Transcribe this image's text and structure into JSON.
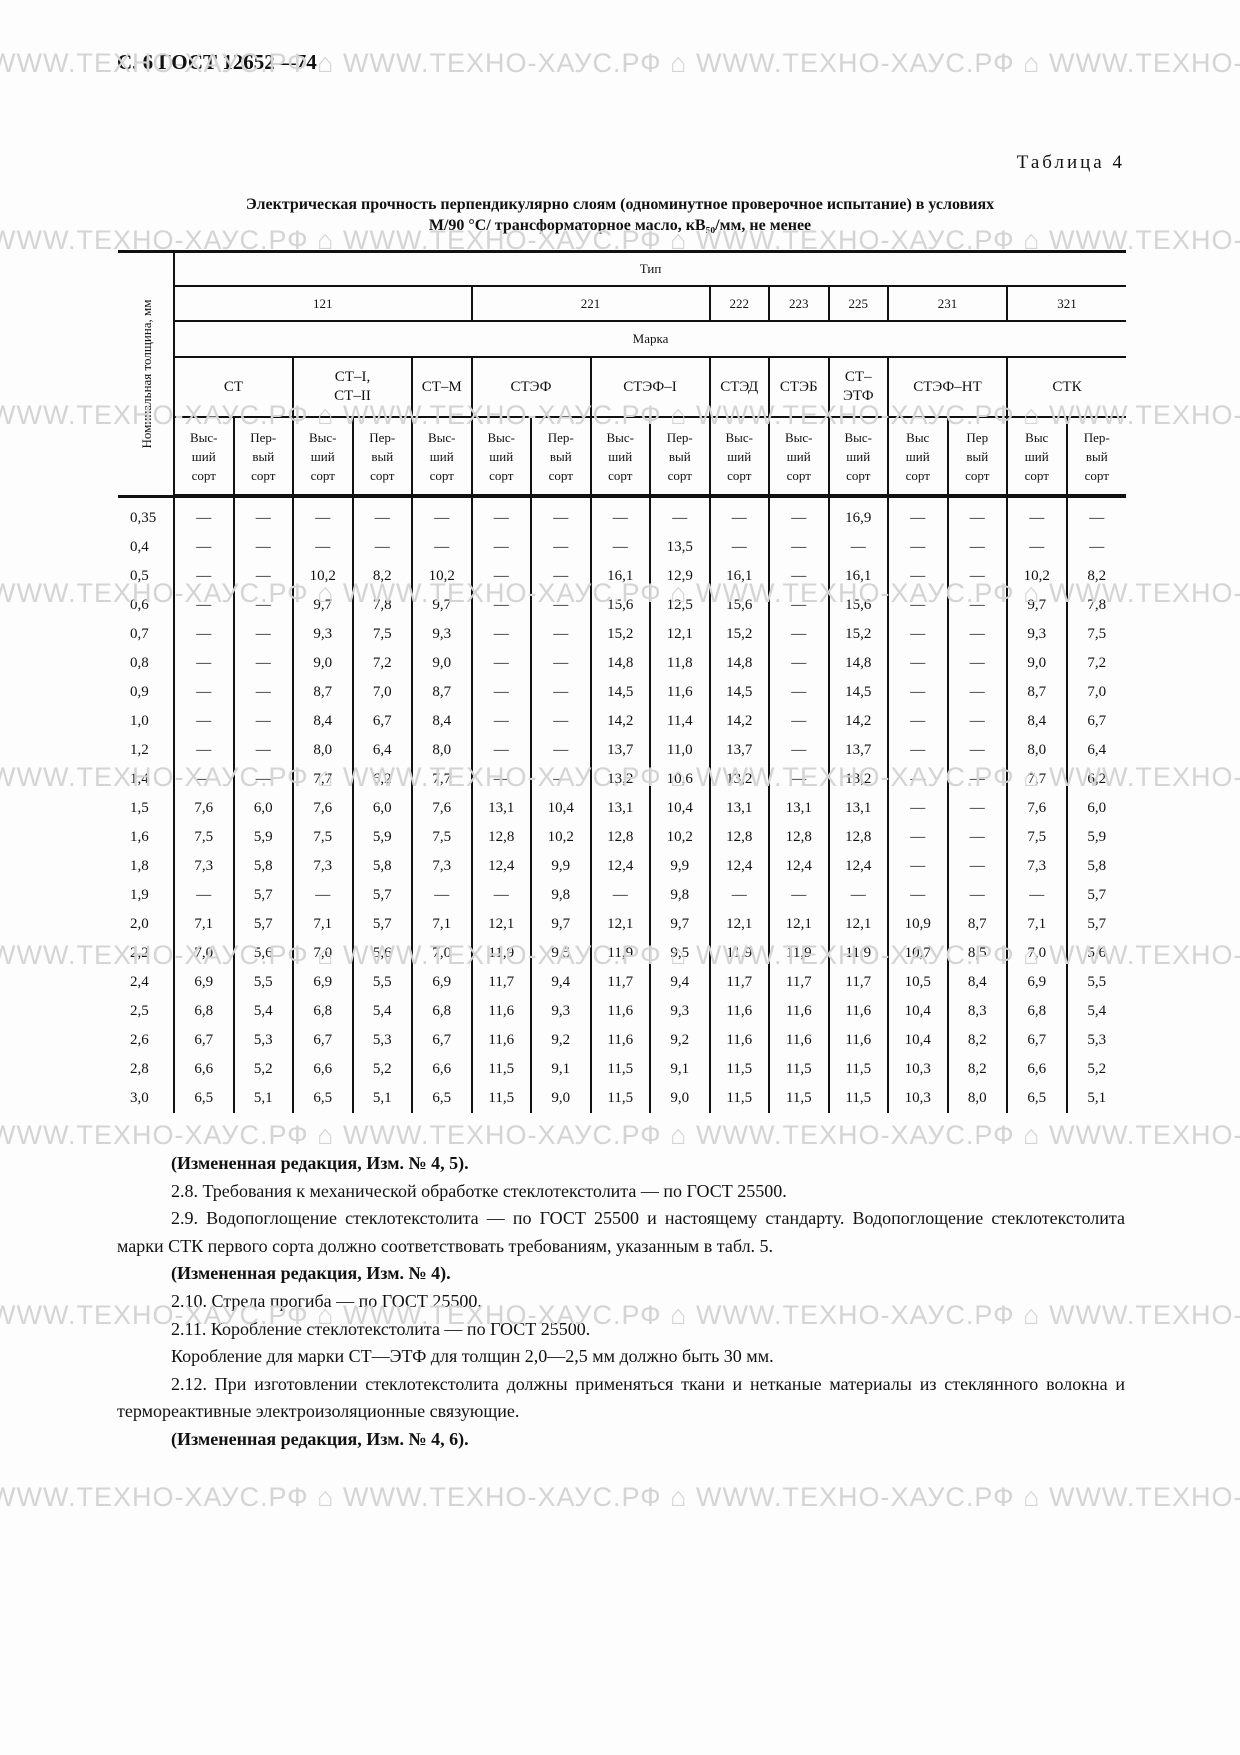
{
  "watermark": "WWW.ТЕХНО-ХАУС.РФ",
  "header": "С. 6 ГОСТ 12652—74",
  "table_number": "Таблица 4",
  "table_title_1": "Электрическая прочность перпендикулярно слоям (одноминутное проверочное испытание) в условиях",
  "table_title_2": "М/90 °С/ трансформаторное масло, кВ₅₀/мм, не менее",
  "table": {
    "thickness_header": "Номинальная толщина, мм",
    "type_header": "Тип",
    "mark_header": "Марка",
    "types": [
      {
        "label": "121",
        "span": 5
      },
      {
        "label": "221",
        "span": 4
      },
      {
        "label": "222",
        "span": 1
      },
      {
        "label": "223",
        "span": 1
      },
      {
        "label": "225",
        "span": 1
      },
      {
        "label": "231",
        "span": 2
      },
      {
        "label": "321",
        "span": 2
      }
    ],
    "marks": [
      {
        "label": "СТ",
        "span": 2
      },
      {
        "label": "СТ–I,\nСТ–II",
        "span": 2
      },
      {
        "label": "СТ–М",
        "span": 1
      },
      {
        "label": "СТЭФ",
        "span": 2
      },
      {
        "label": "СТЭФ–I",
        "span": 2
      },
      {
        "label": "СТЭД",
        "span": 1
      },
      {
        "label": "СТЭБ",
        "span": 1
      },
      {
        "label": "СТ–\nЭТФ",
        "span": 1
      },
      {
        "label": "СТЭФ–НТ",
        "span": 2
      },
      {
        "label": "СТК",
        "span": 2
      }
    ],
    "sorts": [
      "Выс-\nший\nсорт",
      "Пер-\nвый\nсорт",
      "Выс-\nший\nсорт",
      "Пер-\nвый\nсорт",
      "Выс-\nший\nсорт",
      "Выс-\nший\nсорт",
      "Пер-\nвый\nсорт",
      "Выс-\nший\nсорт",
      "Пер-\nвый\nсорт",
      "Выс-\nший\nсорт",
      "Выс-\nший\nсорт",
      "Выс-\nший\nсорт",
      "Выс\nший\nсорт",
      "Пер\nвый\nсорт",
      "Выс\nший\nсорт",
      "Пер-\nвый\nсорт"
    ],
    "rows": [
      [
        "0,35",
        "—",
        "—",
        "—",
        "—",
        "—",
        "—",
        "—",
        "—",
        "—",
        "—",
        "—",
        "16,9",
        "—",
        "—",
        "—",
        "—"
      ],
      [
        "0,4",
        "—",
        "—",
        "—",
        "—",
        "—",
        "—",
        "—",
        "—",
        "13,5",
        "—",
        "—",
        "—",
        "—",
        "—",
        "—",
        "—"
      ],
      [
        "0,5",
        "—",
        "—",
        "10,2",
        "8,2",
        "10,2",
        "—",
        "—",
        "16,1",
        "12,9",
        "16,1",
        "—",
        "16,1",
        "—",
        "—",
        "10,2",
        "8,2"
      ],
      [
        "0,6",
        "—",
        "—",
        "9,7",
        "7,8",
        "9,7",
        "—",
        "—",
        "15,6",
        "12,5",
        "15,6",
        "—",
        "15,6",
        "—",
        "—",
        "9,7",
        "7,8"
      ],
      [
        "0,7",
        "—",
        "—",
        "9,3",
        "7,5",
        "9,3",
        "—",
        "—",
        "15,2",
        "12,1",
        "15,2",
        "—",
        "15,2",
        "—",
        "—",
        "9,3",
        "7,5"
      ],
      [
        "0,8",
        "—",
        "—",
        "9,0",
        "7,2",
        "9,0",
        "—",
        "—",
        "14,8",
        "11,8",
        "14,8",
        "—",
        "14,8",
        "—",
        "—",
        "9,0",
        "7,2"
      ],
      [
        "0,9",
        "—",
        "—",
        "8,7",
        "7,0",
        "8,7",
        "—",
        "—",
        "14,5",
        "11,6",
        "14,5",
        "—",
        "14,5",
        "—",
        "—",
        "8,7",
        "7,0"
      ],
      [
        "1,0",
        "—",
        "—",
        "8,4",
        "6,7",
        "8,4",
        "—",
        "—",
        "14,2",
        "11,4",
        "14,2",
        "—",
        "14,2",
        "—",
        "—",
        "8,4",
        "6,7"
      ],
      [
        "1,2",
        "—",
        "—",
        "8,0",
        "6,4",
        "8,0",
        "—",
        "—",
        "13,7",
        "11,0",
        "13,7",
        "—",
        "13,7",
        "—",
        "—",
        "8,0",
        "6,4"
      ],
      [
        "1,4",
        "—",
        "—",
        "7,7",
        "6,2",
        "7,7",
        "—",
        "—",
        "13,2",
        "10,6",
        "13,2",
        "—",
        "13,2",
        "—",
        "—",
        "7,7",
        "6,2"
      ],
      [
        "1,5",
        "7,6",
        "6,0",
        "7,6",
        "6,0",
        "7,6",
        "13,1",
        "10,4",
        "13,1",
        "10,4",
        "13,1",
        "13,1",
        "13,1",
        "—",
        "—",
        "7,6",
        "6,0"
      ],
      [
        "1,6",
        "7,5",
        "5,9",
        "7,5",
        "5,9",
        "7,5",
        "12,8",
        "10,2",
        "12,8",
        "10,2",
        "12,8",
        "12,8",
        "12,8",
        "—",
        "—",
        "7,5",
        "5,9"
      ],
      [
        "1,8",
        "7,3",
        "5,8",
        "7,3",
        "5,8",
        "7,3",
        "12,4",
        "9,9",
        "12,4",
        "9,9",
        "12,4",
        "12,4",
        "12,4",
        "—",
        "—",
        "7,3",
        "5,8"
      ],
      [
        "1,9",
        "—",
        "5,7",
        "—",
        "5,7",
        "—",
        "—",
        "9,8",
        "—",
        "9,8",
        "—",
        "—",
        "—",
        "—",
        "—",
        "—",
        "5,7"
      ],
      [
        "2,0",
        "7,1",
        "5,7",
        "7,1",
        "5,7",
        "7,1",
        "12,1",
        "9,7",
        "12,1",
        "9,7",
        "12,1",
        "12,1",
        "12,1",
        "10,9",
        "8,7",
        "7,1",
        "5,7"
      ],
      [
        "2,2",
        "7,0",
        "5,6",
        "7,0",
        "5,6",
        "7,0",
        "11,9",
        "9,5",
        "11,9",
        "9,5",
        "11,9",
        "11,9",
        "11,9",
        "10,7",
        "8,5",
        "7,0",
        "5,6"
      ],
      [
        "2,4",
        "6,9",
        "5,5",
        "6,9",
        "5,5",
        "6,9",
        "11,7",
        "9,4",
        "11,7",
        "9,4",
        "11,7",
        "11,7",
        "11,7",
        "10,5",
        "8,4",
        "6,9",
        "5,5"
      ],
      [
        "2,5",
        "6,8",
        "5,4",
        "6,8",
        "5,4",
        "6,8",
        "11,6",
        "9,3",
        "11,6",
        "9,3",
        "11,6",
        "11,6",
        "11,6",
        "10,4",
        "8,3",
        "6,8",
        "5,4"
      ],
      [
        "2,6",
        "6,7",
        "5,3",
        "6,7",
        "5,3",
        "6,7",
        "11,6",
        "9,2",
        "11,6",
        "9,2",
        "11,6",
        "11,6",
        "11,6",
        "10,4",
        "8,2",
        "6,7",
        "5,3"
      ],
      [
        "2,8",
        "6,6",
        "5,2",
        "6,6",
        "5,2",
        "6,6",
        "11,5",
        "9,1",
        "11,5",
        "9,1",
        "11,5",
        "11,5",
        "11,5",
        "10,3",
        "8,2",
        "6,6",
        "5,2"
      ],
      [
        "3,0",
        "6,5",
        "5,1",
        "6,5",
        "5,1",
        "6,5",
        "11,5",
        "9,0",
        "11,5",
        "9,0",
        "11,5",
        "11,5",
        "11,5",
        "10,3",
        "8,0",
        "6,5",
        "5,1"
      ]
    ]
  },
  "text": [
    {
      "t": "(Измененная редакция, Изм. № 4, 5).",
      "bold": true
    },
    {
      "t": "2.8. Требования к механической обработке стеклотекстолита — по ГОСТ 25500."
    },
    {
      "t": "2.9. Водопоглощение стеклотекстолита — по ГОСТ 25500 и настоящему стандарту. Водопоглощение стеклотекстолита марки СТК первого сорта должно соответствовать требованиям, указанным в табл. 5."
    },
    {
      "t": "(Измененная редакция, Изм. № 4).",
      "bold": true
    },
    {
      "t": "2.10. Стрела прогиба — по ГОСТ 25500."
    },
    {
      "t": "2.11. Коробление стеклотекстолита — по ГОСТ 25500."
    },
    {
      "t": "Коробление для марки СТ—ЭТФ для толщин 2,0—2,5 мм должно быть 30 мм."
    },
    {
      "t": "2.12. При изготовлении стеклотекстолита должны применяться ткани и нетканые материалы из стеклянного волокна и термореактивные электроизоляционные связующие."
    },
    {
      "t": "(Измененная редакция, Изм. № 4, 6).",
      "bold": true
    }
  ]
}
